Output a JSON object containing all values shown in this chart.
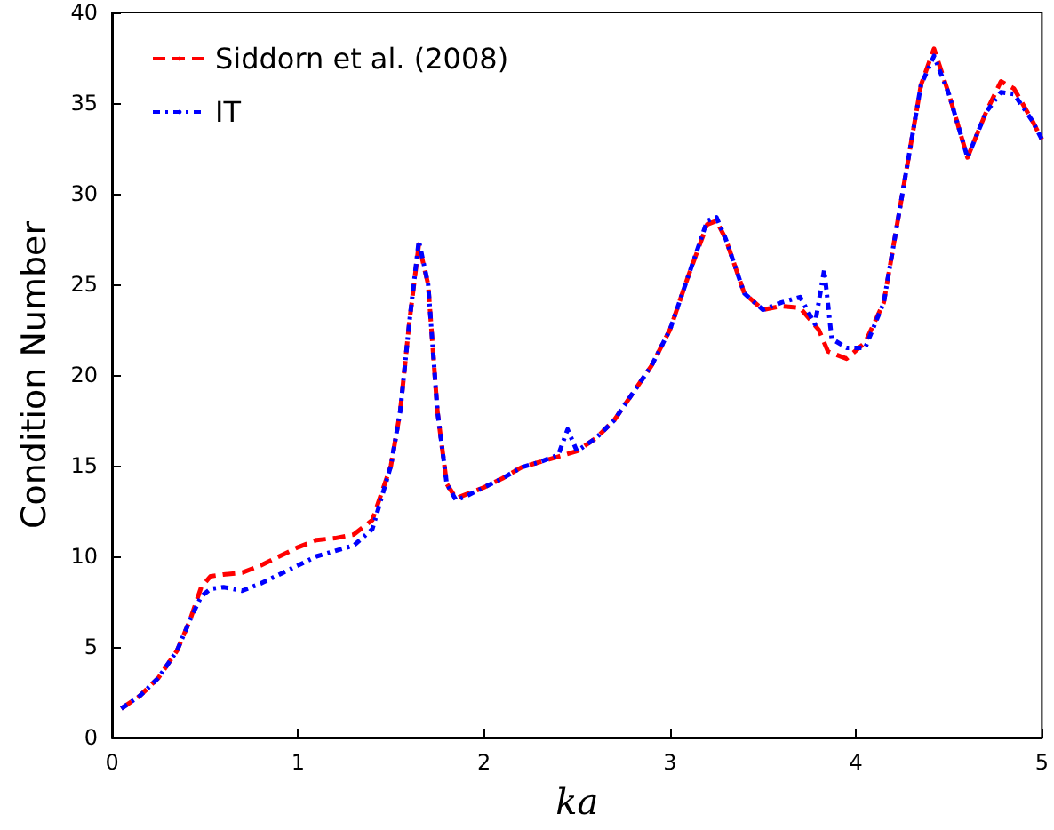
{
  "chart_data": {
    "type": "line",
    "xlabel": "ka",
    "ylabel": "Condition Number",
    "xlim": [
      0,
      5
    ],
    "xticks": [
      0,
      1,
      2,
      3,
      4,
      5
    ],
    "ylim": [
      0,
      40
    ],
    "yticks": [
      0,
      5,
      10,
      15,
      20,
      25,
      30,
      35,
      40
    ],
    "grid": false,
    "legend": "top left",
    "marker": "none",
    "series": [
      {
        "name": "Siddorn et al. (2008)",
        "color": "#ff0000",
        "line_style": "dashed",
        "x": [
          0.05,
          0.15,
          0.25,
          0.35,
          0.42,
          0.48,
          0.53,
          0.6,
          0.7,
          0.8,
          0.9,
          1.0,
          1.1,
          1.2,
          1.3,
          1.4,
          1.5,
          1.55,
          1.6,
          1.65,
          1.7,
          1.75,
          1.8,
          1.85,
          1.9,
          2.0,
          2.1,
          2.2,
          2.3,
          2.4,
          2.5,
          2.6,
          2.7,
          2.8,
          2.9,
          3.0,
          3.1,
          3.2,
          3.25,
          3.3,
          3.4,
          3.5,
          3.6,
          3.7,
          3.8,
          3.85,
          3.95,
          4.05,
          4.15,
          4.25,
          4.35,
          4.42,
          4.5,
          4.6,
          4.7,
          4.78,
          4.85,
          4.95,
          5.0
        ],
        "values": [
          1.6,
          2.3,
          3.3,
          4.8,
          6.5,
          8.3,
          8.9,
          9.0,
          9.1,
          9.5,
          10.0,
          10.5,
          10.9,
          11.0,
          11.2,
          12.0,
          15,
          18,
          23,
          27.2,
          25,
          18,
          14,
          13.2,
          13.4,
          13.8,
          14.3,
          14.9,
          15.2,
          15.5,
          15.8,
          16.5,
          17.5,
          19,
          20.5,
          22.5,
          25.5,
          28.3,
          28.5,
          27.5,
          24.5,
          23.6,
          23.8,
          23.7,
          22.5,
          21.3,
          20.9,
          21.8,
          24,
          30,
          36,
          38,
          35.5,
          32.0,
          34.5,
          36.2,
          35.8,
          34,
          33
        ]
      },
      {
        "name": "IT",
        "color": "#0000ff",
        "line_style": "dotted",
        "x": [
          0.05,
          0.15,
          0.25,
          0.35,
          0.42,
          0.48,
          0.53,
          0.6,
          0.7,
          0.8,
          0.9,
          1.0,
          1.1,
          1.2,
          1.3,
          1.4,
          1.5,
          1.55,
          1.6,
          1.65,
          1.7,
          1.75,
          1.8,
          1.85,
          1.9,
          2.0,
          2.1,
          2.2,
          2.3,
          2.4,
          2.45,
          2.5,
          2.6,
          2.7,
          2.8,
          2.9,
          3.0,
          3.1,
          3.2,
          3.25,
          3.3,
          3.4,
          3.5,
          3.6,
          3.7,
          3.78,
          3.83,
          3.87,
          3.95,
          4.05,
          4.15,
          4.25,
          4.35,
          4.42,
          4.5,
          4.6,
          4.7,
          4.78,
          4.85,
          4.95,
          5.0
        ],
        "values": [
          1.6,
          2.3,
          3.3,
          4.8,
          6.5,
          7.8,
          8.2,
          8.3,
          8.1,
          8.5,
          9.0,
          9.5,
          10.0,
          10.3,
          10.6,
          11.5,
          15,
          18,
          23,
          27.4,
          25,
          18,
          14,
          13.1,
          13.3,
          13.8,
          14.3,
          14.9,
          15.2,
          15.6,
          17,
          15.8,
          16.5,
          17.5,
          19,
          20.5,
          22.5,
          25.5,
          28.5,
          28.7,
          27.5,
          24.5,
          23.6,
          24.0,
          24.3,
          22.8,
          25.8,
          22.0,
          21.5,
          21.5,
          24,
          30,
          36,
          37.6,
          35.5,
          32.0,
          34.5,
          35.6,
          35.5,
          34,
          33
        ]
      }
    ]
  }
}
